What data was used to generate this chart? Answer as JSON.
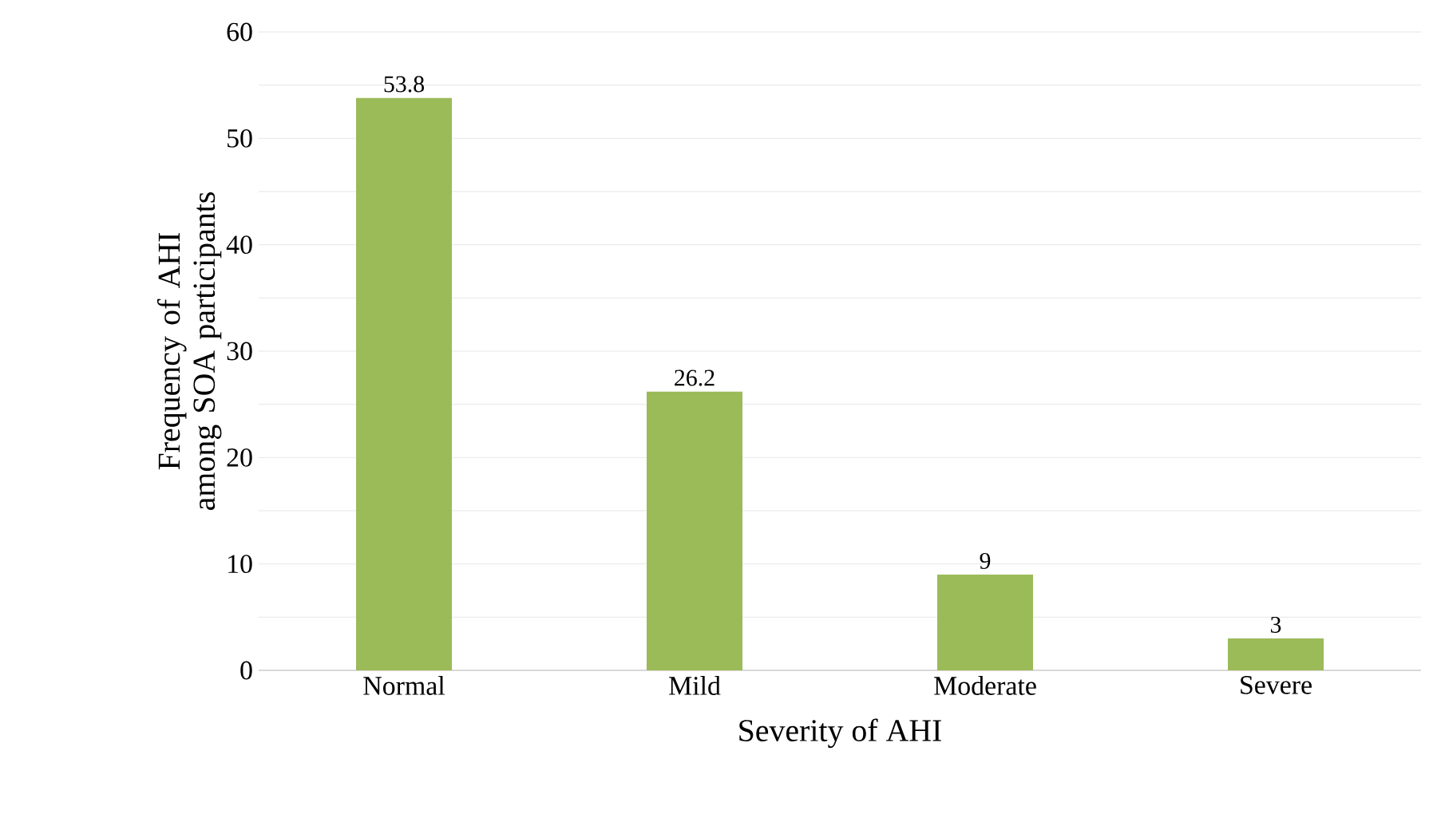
{
  "chart_data": {
    "type": "bar",
    "xlabel": "Severity  of AHI",
    "ylabel": "Frequency  of AHI among SOA participants",
    "categories": [
      "Normal",
      "Mild",
      "Moderate",
      "Severe"
    ],
    "values": [
      53.8,
      26.2,
      9,
      3
    ],
    "color": "#9bbb59",
    "data_labels": true,
    "ylim": [
      0,
      60
    ],
    "yticks": [
      0,
      {
        "value": 5,
        "label": null
      },
      10,
      {
        "value": 15,
        "label": null
      },
      20,
      {
        "value": 25,
        "label": null
      },
      30,
      {
        "value": 35,
        "label": null
      },
      40,
      {
        "value": 45,
        "label": null
      },
      50,
      {
        "value": 55,
        "label": null
      },
      60
    ],
    "grid": "y"
  }
}
